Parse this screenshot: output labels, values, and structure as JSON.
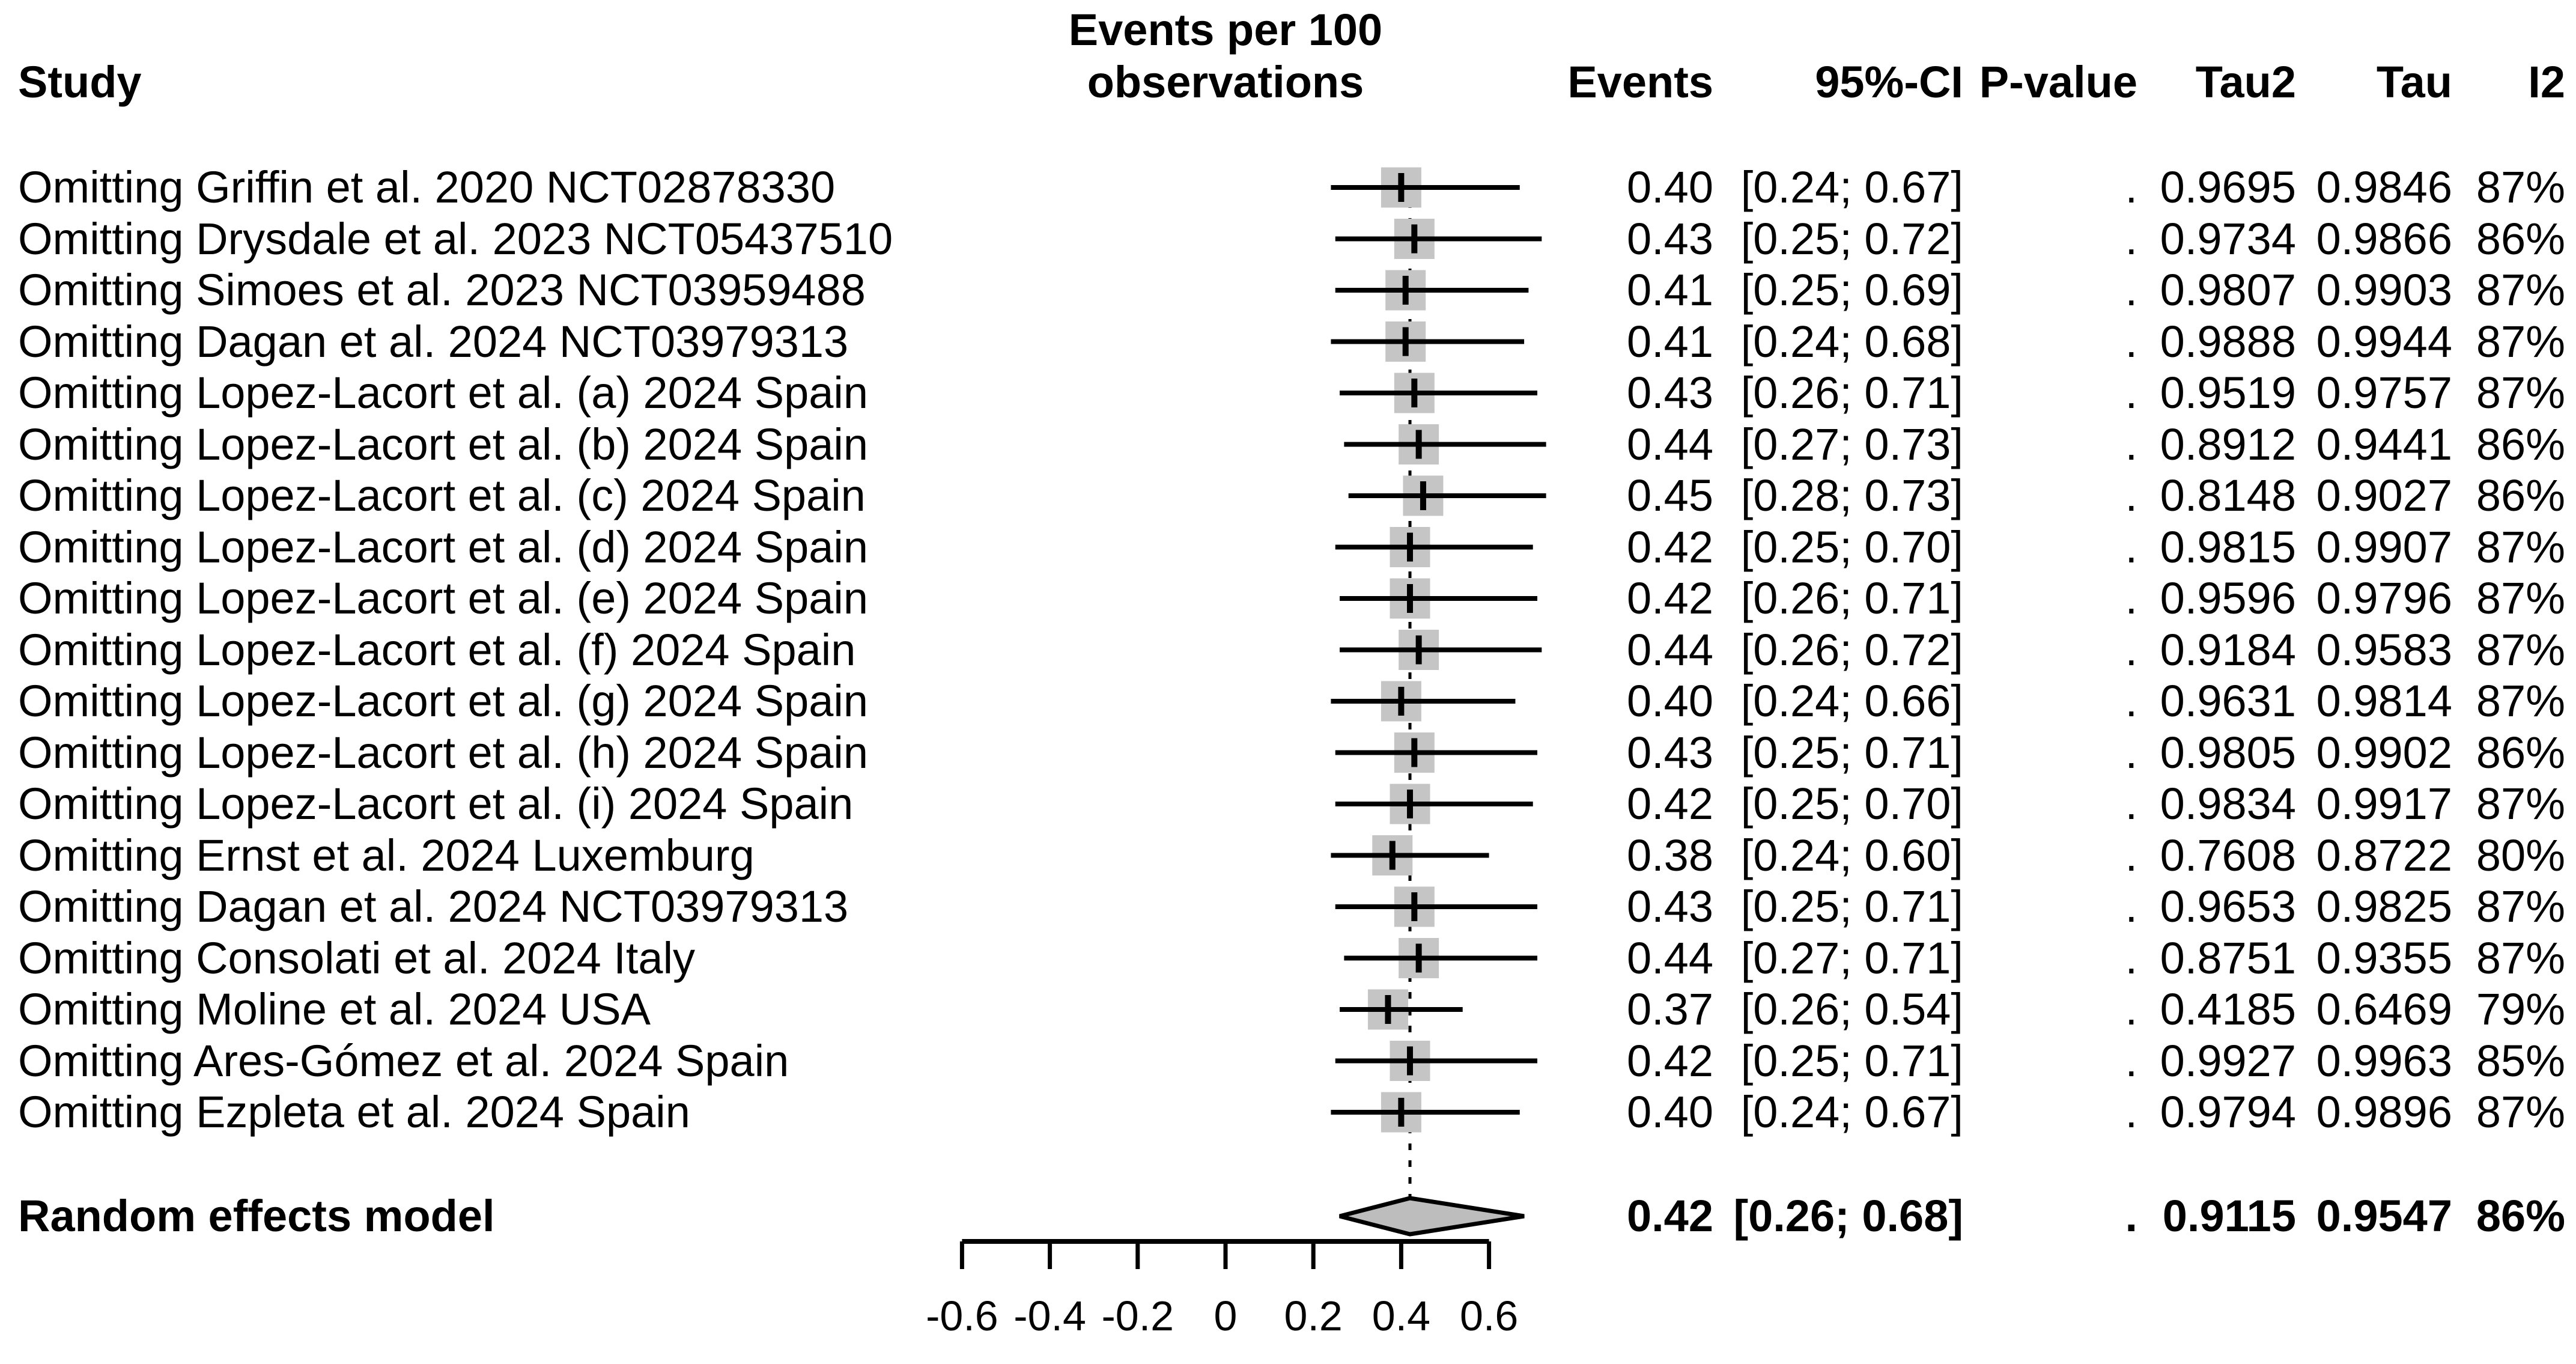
{
  "header": {
    "col_study": "Study",
    "plot_title_line1": "Events per 100",
    "plot_title_line2": "observations",
    "col_events": "Events",
    "col_ci": "95%-CI",
    "col_pvalue": "P-value",
    "col_tau2": "Tau2",
    "col_tau": "Tau",
    "col_i2": "I2"
  },
  "colors": {
    "square": "#c5c5c5",
    "diamond_fill": "#bdbdbd",
    "line": "#000000",
    "background": "#ffffff"
  },
  "chart_data": {
    "type": "forest",
    "title": "Events per 100 observations",
    "x_axis": {
      "range": [
        -0.6,
        0.6
      ],
      "ticks": [
        -0.6,
        -0.4,
        -0.2,
        0,
        0.2,
        0.4,
        0.6
      ],
      "tick_labels": [
        "-0.6",
        "-0.4",
        "-0.2",
        "0",
        "0.2",
        "0.4",
        "0.6"
      ]
    },
    "reference_line_x": 0.42,
    "studies": [
      {
        "label": "Omitting Griffin et al. 2020 NCT02878330",
        "events": "0.40",
        "est": 0.4,
        "ci_text": "[0.24; 0.67]",
        "lo": 0.24,
        "hi": 0.67,
        "p_value": ".",
        "tau2": "0.9695",
        "tau": "0.9846",
        "i2": "87%"
      },
      {
        "label": "Omitting Drysdale et al. 2023 NCT05437510",
        "events": "0.43",
        "est": 0.43,
        "ci_text": "[0.25; 0.72]",
        "lo": 0.25,
        "hi": 0.72,
        "p_value": ".",
        "tau2": "0.9734",
        "tau": "0.9866",
        "i2": "86%"
      },
      {
        "label": "Omitting Simoes et al. 2023 NCT03959488",
        "events": "0.41",
        "est": 0.41,
        "ci_text": "[0.25; 0.69]",
        "lo": 0.25,
        "hi": 0.69,
        "p_value": ".",
        "tau2": "0.9807",
        "tau": "0.9903",
        "i2": "87%"
      },
      {
        "label": "Omitting Dagan et al. 2024 NCT03979313",
        "events": "0.41",
        "est": 0.41,
        "ci_text": "[0.24; 0.68]",
        "lo": 0.24,
        "hi": 0.68,
        "p_value": ".",
        "tau2": "0.9888",
        "tau": "0.9944",
        "i2": "87%"
      },
      {
        "label": "Omitting Lopez-Lacort et al. (a) 2024 Spain",
        "events": "0.43",
        "est": 0.43,
        "ci_text": "[0.26; 0.71]",
        "lo": 0.26,
        "hi": 0.71,
        "p_value": ".",
        "tau2": "0.9519",
        "tau": "0.9757",
        "i2": "87%"
      },
      {
        "label": "Omitting Lopez-Lacort et al. (b) 2024 Spain",
        "events": "0.44",
        "est": 0.44,
        "ci_text": "[0.27; 0.73]",
        "lo": 0.27,
        "hi": 0.73,
        "p_value": ".",
        "tau2": "0.8912",
        "tau": "0.9441",
        "i2": "86%"
      },
      {
        "label": "Omitting Lopez-Lacort et al. (c) 2024 Spain",
        "events": "0.45",
        "est": 0.45,
        "ci_text": "[0.28; 0.73]",
        "lo": 0.28,
        "hi": 0.73,
        "p_value": ".",
        "tau2": "0.8148",
        "tau": "0.9027",
        "i2": "86%"
      },
      {
        "label": "Omitting Lopez-Lacort et al. (d) 2024 Spain",
        "events": "0.42",
        "est": 0.42,
        "ci_text": "[0.25; 0.70]",
        "lo": 0.25,
        "hi": 0.7,
        "p_value": ".",
        "tau2": "0.9815",
        "tau": "0.9907",
        "i2": "87%"
      },
      {
        "label": "Omitting Lopez-Lacort et al. (e) 2024 Spain",
        "events": "0.42",
        "est": 0.42,
        "ci_text": "[0.26; 0.71]",
        "lo": 0.26,
        "hi": 0.71,
        "p_value": ".",
        "tau2": "0.9596",
        "tau": "0.9796",
        "i2": "87%"
      },
      {
        "label": "Omitting Lopez-Lacort et al. (f) 2024 Spain",
        "events": "0.44",
        "est": 0.44,
        "ci_text": "[0.26; 0.72]",
        "lo": 0.26,
        "hi": 0.72,
        "p_value": ".",
        "tau2": "0.9184",
        "tau": "0.9583",
        "i2": "87%"
      },
      {
        "label": "Omitting Lopez-Lacort et al. (g) 2024 Spain",
        "events": "0.40",
        "est": 0.4,
        "ci_text": "[0.24; 0.66]",
        "lo": 0.24,
        "hi": 0.66,
        "p_value": ".",
        "tau2": "0.9631",
        "tau": "0.9814",
        "i2": "87%"
      },
      {
        "label": "Omitting Lopez-Lacort et al. (h) 2024 Spain",
        "events": "0.43",
        "est": 0.43,
        "ci_text": "[0.25; 0.71]",
        "lo": 0.25,
        "hi": 0.71,
        "p_value": ".",
        "tau2": "0.9805",
        "tau": "0.9902",
        "i2": "86%"
      },
      {
        "label": "Omitting Lopez-Lacort et al. (i) 2024 Spain",
        "events": "0.42",
        "est": 0.42,
        "ci_text": "[0.25; 0.70]",
        "lo": 0.25,
        "hi": 0.7,
        "p_value": ".",
        "tau2": "0.9834",
        "tau": "0.9917",
        "i2": "87%"
      },
      {
        "label": "Omitting Ernst et al. 2024 Luxemburg",
        "events": "0.38",
        "est": 0.38,
        "ci_text": "[0.24; 0.60]",
        "lo": 0.24,
        "hi": 0.6,
        "p_value": ".",
        "tau2": "0.7608",
        "tau": "0.8722",
        "i2": "80%"
      },
      {
        "label": "Omitting Dagan et al. 2024 NCT03979313",
        "events": "0.43",
        "est": 0.43,
        "ci_text": "[0.25; 0.71]",
        "lo": 0.25,
        "hi": 0.71,
        "p_value": ".",
        "tau2": "0.9653",
        "tau": "0.9825",
        "i2": "87%"
      },
      {
        "label": "Omitting Consolati et al. 2024 Italy",
        "events": "0.44",
        "est": 0.44,
        "ci_text": "[0.27; 0.71]",
        "lo": 0.27,
        "hi": 0.71,
        "p_value": ".",
        "tau2": "0.8751",
        "tau": "0.9355",
        "i2": "87%"
      },
      {
        "label": "Omitting Moline et al. 2024 USA",
        "events": "0.37",
        "est": 0.37,
        "ci_text": "[0.26; 0.54]",
        "lo": 0.26,
        "hi": 0.54,
        "p_value": ".",
        "tau2": "0.4185",
        "tau": "0.6469",
        "i2": "79%"
      },
      {
        "label": "Omitting Ares-Gómez et al. 2024 Spain",
        "events": "0.42",
        "est": 0.42,
        "ci_text": "[0.25; 0.71]",
        "lo": 0.25,
        "hi": 0.71,
        "p_value": ".",
        "tau2": "0.9927",
        "tau": "0.9963",
        "i2": "85%"
      },
      {
        "label": "Omitting Ezpleta et al. 2024 Spain",
        "events": "0.40",
        "est": 0.4,
        "ci_text": "[0.24; 0.67]",
        "lo": 0.24,
        "hi": 0.67,
        "p_value": ".",
        "tau2": "0.9794",
        "tau": "0.9896",
        "i2": "87%"
      }
    ],
    "summary": {
      "label": "Random effects model",
      "events": "0.42",
      "est": 0.42,
      "ci_text": "[0.26; 0.68]",
      "lo": 0.26,
      "hi": 0.68,
      "p_value": ".",
      "tau2": "0.9115",
      "tau": "0.9547",
      "i2": "86%"
    }
  }
}
